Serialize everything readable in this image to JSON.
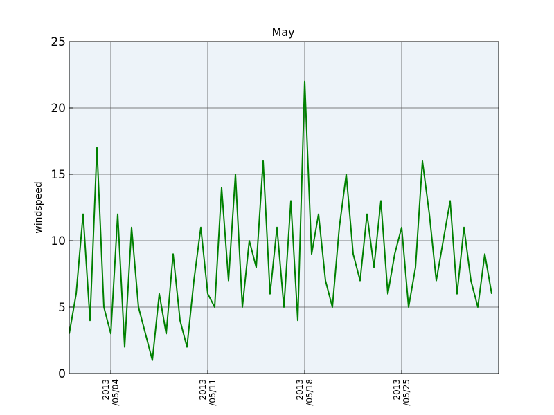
{
  "chart_data": {
    "type": "line",
    "title": "May",
    "xlabel": "",
    "ylabel": "windspeed",
    "ylim": [
      0,
      25
    ],
    "xlim": [
      "2013-05-01",
      "2013-06-01"
    ],
    "yticks": [
      0,
      5,
      10,
      15,
      20,
      25
    ],
    "yticklabels": [
      "0",
      "5",
      "10",
      "15",
      "20",
      "25"
    ],
    "xticks": [
      {
        "date": "2013-05-04",
        "line1": "2013",
        "line2": "/05/04"
      },
      {
        "date": "2013-05-11",
        "line1": "2013",
        "line2": "/05/11"
      },
      {
        "date": "2013-05-18",
        "line1": "2013",
        "line2": "/05/18"
      },
      {
        "date": "2013-05-25",
        "line1": "2013",
        "line2": "/05/25"
      }
    ],
    "grid": true,
    "series": [
      {
        "color": "#008000",
        "x": [
          "2013-05-01",
          "2013-05-01T12:00",
          "2013-05-02",
          "2013-05-02T12:00",
          "2013-05-03",
          "2013-05-03T12:00",
          "2013-05-04",
          "2013-05-04T12:00",
          "2013-05-05",
          "2013-05-05T12:00",
          "2013-05-06",
          "2013-05-06T12:00",
          "2013-05-07",
          "2013-05-07T12:00",
          "2013-05-08",
          "2013-05-08T12:00",
          "2013-05-09",
          "2013-05-09T12:00",
          "2013-05-10",
          "2013-05-10T12:00",
          "2013-05-11",
          "2013-05-11T12:00",
          "2013-05-12",
          "2013-05-12T12:00",
          "2013-05-13",
          "2013-05-13T12:00",
          "2013-05-14",
          "2013-05-14T12:00",
          "2013-05-15",
          "2013-05-15T12:00",
          "2013-05-16",
          "2013-05-16T12:00",
          "2013-05-17",
          "2013-05-17T12:00",
          "2013-05-18",
          "2013-05-18T12:00",
          "2013-05-19",
          "2013-05-19T12:00",
          "2013-05-20",
          "2013-05-20T12:00",
          "2013-05-21",
          "2013-05-21T12:00",
          "2013-05-22",
          "2013-05-22T12:00",
          "2013-05-23",
          "2013-05-23T12:00",
          "2013-05-24",
          "2013-05-24T12:00",
          "2013-05-25",
          "2013-05-25T12:00",
          "2013-05-26",
          "2013-05-26T12:00",
          "2013-05-27",
          "2013-05-27T12:00",
          "2013-05-28",
          "2013-05-28T12:00",
          "2013-05-29",
          "2013-05-29T12:00",
          "2013-05-30",
          "2013-05-30T12:00",
          "2013-05-31",
          "2013-05-31T12:00"
        ],
        "y": [
          3,
          6,
          12,
          4,
          17,
          5,
          3,
          12,
          2,
          11,
          5,
          3,
          1,
          6,
          3,
          9,
          4,
          2,
          7,
          11,
          6,
          5,
          14,
          7,
          15,
          5,
          10,
          8,
          16,
          6,
          11,
          5,
          13,
          4,
          22,
          9,
          12,
          7,
          5,
          11,
          15,
          9,
          7,
          12,
          8,
          13,
          6,
          9,
          11,
          5,
          8,
          16,
          12,
          7,
          10,
          13,
          6,
          11,
          7,
          5,
          9,
          6
        ]
      }
    ]
  }
}
